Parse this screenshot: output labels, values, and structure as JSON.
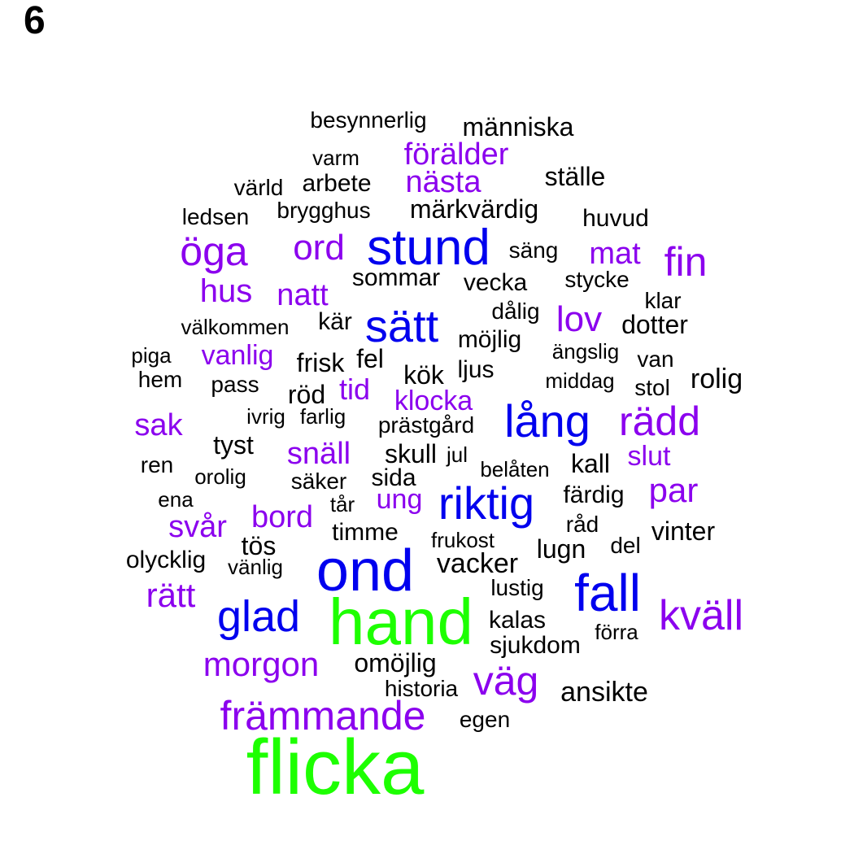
{
  "panel_label": "6",
  "colors": {
    "black": "#000000",
    "purple": "#8b00ee",
    "blue": "#0000ee",
    "green": "#1dff00"
  },
  "words": [
    {
      "text": "flicka",
      "color": "green"
    },
    {
      "text": "hand",
      "color": "green"
    },
    {
      "text": "ond",
      "color": "blue"
    },
    {
      "text": "stund",
      "color": "blue"
    },
    {
      "text": "fall",
      "color": "blue"
    },
    {
      "text": "sätt",
      "color": "blue"
    },
    {
      "text": "riktig",
      "color": "blue"
    },
    {
      "text": "lång",
      "color": "blue"
    },
    {
      "text": "glad",
      "color": "blue"
    },
    {
      "text": "kväll",
      "color": "purple"
    },
    {
      "text": "rädd",
      "color": "purple"
    },
    {
      "text": "öga",
      "color": "purple"
    },
    {
      "text": "fin",
      "color": "purple"
    },
    {
      "text": "främmande",
      "color": "purple"
    },
    {
      "text": "väg",
      "color": "purple"
    },
    {
      "text": "morgon",
      "color": "purple"
    },
    {
      "text": "ord",
      "color": "purple"
    },
    {
      "text": "lov",
      "color": "purple"
    },
    {
      "text": "par",
      "color": "purple"
    },
    {
      "text": "rätt",
      "color": "purple"
    },
    {
      "text": "hus",
      "color": "purple"
    },
    {
      "text": "mat",
      "color": "purple"
    },
    {
      "text": "natt",
      "color": "purple"
    },
    {
      "text": "förälder",
      "color": "purple"
    },
    {
      "text": "nästa",
      "color": "purple"
    },
    {
      "text": "sak",
      "color": "purple"
    },
    {
      "text": "svår",
      "color": "purple"
    },
    {
      "text": "bord",
      "color": "purple"
    },
    {
      "text": "snäll",
      "color": "purple"
    },
    {
      "text": "vanlig",
      "color": "purple"
    },
    {
      "text": "klocka",
      "color": "purple"
    },
    {
      "text": "slut",
      "color": "purple"
    },
    {
      "text": "ung",
      "color": "purple"
    },
    {
      "text": "tid",
      "color": "purple"
    },
    {
      "text": "människa",
      "color": "black"
    },
    {
      "text": "besynnerlig",
      "color": "black"
    },
    {
      "text": "varm",
      "color": "black"
    },
    {
      "text": "ställe",
      "color": "black"
    },
    {
      "text": "värld",
      "color": "black"
    },
    {
      "text": "arbete",
      "color": "black"
    },
    {
      "text": "märkvärdig",
      "color": "black"
    },
    {
      "text": "ledsen",
      "color": "black"
    },
    {
      "text": "brygghus",
      "color": "black"
    },
    {
      "text": "huvud",
      "color": "black"
    },
    {
      "text": "säng",
      "color": "black"
    },
    {
      "text": "sommar",
      "color": "black"
    },
    {
      "text": "vecka",
      "color": "black"
    },
    {
      "text": "stycke",
      "color": "black"
    },
    {
      "text": "klar",
      "color": "black"
    },
    {
      "text": "dålig",
      "color": "black"
    },
    {
      "text": "dotter",
      "color": "black"
    },
    {
      "text": "välkommen",
      "color": "black"
    },
    {
      "text": "kär",
      "color": "black"
    },
    {
      "text": "möjlig",
      "color": "black"
    },
    {
      "text": "ängslig",
      "color": "black"
    },
    {
      "text": "van",
      "color": "black"
    },
    {
      "text": "piga",
      "color": "black"
    },
    {
      "text": "frisk",
      "color": "black"
    },
    {
      "text": "fel",
      "color": "black"
    },
    {
      "text": "ljus",
      "color": "black"
    },
    {
      "text": "kök",
      "color": "black"
    },
    {
      "text": "middag",
      "color": "black"
    },
    {
      "text": "rolig",
      "color": "black"
    },
    {
      "text": "hem",
      "color": "black"
    },
    {
      "text": "pass",
      "color": "black"
    },
    {
      "text": "röd",
      "color": "black"
    },
    {
      "text": "stol",
      "color": "black"
    },
    {
      "text": "ivrig",
      "color": "black"
    },
    {
      "text": "farlig",
      "color": "black"
    },
    {
      "text": "prästgård",
      "color": "black"
    },
    {
      "text": "tyst",
      "color": "black"
    },
    {
      "text": "skull",
      "color": "black"
    },
    {
      "text": "jul",
      "color": "black"
    },
    {
      "text": "kall",
      "color": "black"
    },
    {
      "text": "ren",
      "color": "black"
    },
    {
      "text": "belåten",
      "color": "black"
    },
    {
      "text": "orolig",
      "color": "black"
    },
    {
      "text": "sida",
      "color": "black"
    },
    {
      "text": "säker",
      "color": "black"
    },
    {
      "text": "färdig",
      "color": "black"
    },
    {
      "text": "ena",
      "color": "black"
    },
    {
      "text": "tår",
      "color": "black"
    },
    {
      "text": "råd",
      "color": "black"
    },
    {
      "text": "timme",
      "color": "black"
    },
    {
      "text": "vinter",
      "color": "black"
    },
    {
      "text": "tös",
      "color": "black"
    },
    {
      "text": "frukost",
      "color": "black"
    },
    {
      "text": "lugn",
      "color": "black"
    },
    {
      "text": "del",
      "color": "black"
    },
    {
      "text": "olycklig",
      "color": "black"
    },
    {
      "text": "vänlig",
      "color": "black"
    },
    {
      "text": "vacker",
      "color": "black"
    },
    {
      "text": "lustig",
      "color": "black"
    },
    {
      "text": "kalas",
      "color": "black"
    },
    {
      "text": "förra",
      "color": "black"
    },
    {
      "text": "sjukdom",
      "color": "black"
    },
    {
      "text": "omöjlig",
      "color": "black"
    },
    {
      "text": "historia",
      "color": "black"
    },
    {
      "text": "ansikte",
      "color": "black"
    },
    {
      "text": "egen",
      "color": "black"
    }
  ]
}
